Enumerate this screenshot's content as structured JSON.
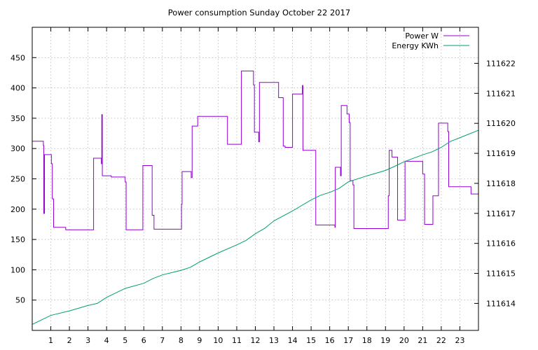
{
  "chart_data": {
    "type": "line",
    "title": "Power consumption Sunday October 22 2017",
    "xlabel": "",
    "ylabel": "",
    "y2label": "",
    "grid": true,
    "legend_position": "top-right",
    "xlim": [
      0,
      24
    ],
    "ylim": [
      0,
      500
    ],
    "y2lim": [
      111613.1,
      111623.2
    ],
    "x_ticks": [
      1,
      2,
      3,
      4,
      5,
      6,
      7,
      8,
      9,
      10,
      11,
      12,
      13,
      14,
      15,
      16,
      17,
      18,
      19,
      20,
      21,
      22,
      23
    ],
    "y_ticks": [
      50,
      100,
      150,
      200,
      250,
      300,
      350,
      400,
      450
    ],
    "y2_ticks": [
      111614,
      111615,
      111616,
      111617,
      111618,
      111619,
      111620,
      111621,
      111622
    ],
    "series": [
      {
        "name": "Power W",
        "axis": "left",
        "color": "#9400d3",
        "step": true,
        "points": [
          [
            0.0,
            312
          ],
          [
            0.55,
            312
          ],
          [
            0.6,
            305
          ],
          [
            0.62,
            193
          ],
          [
            0.66,
            290
          ],
          [
            1.0,
            290
          ],
          [
            1.03,
            275
          ],
          [
            1.08,
            217
          ],
          [
            1.15,
            170
          ],
          [
            1.75,
            170
          ],
          [
            1.8,
            166
          ],
          [
            3.25,
            166
          ],
          [
            3.3,
            284
          ],
          [
            3.7,
            284
          ],
          [
            3.72,
            275
          ],
          [
            3.74,
            356
          ],
          [
            3.77,
            255
          ],
          [
            4.2,
            255
          ],
          [
            4.25,
            253
          ],
          [
            4.95,
            253
          ],
          [
            5.0,
            245
          ],
          [
            5.05,
            166
          ],
          [
            5.9,
            166
          ],
          [
            5.95,
            272
          ],
          [
            6.4,
            272
          ],
          [
            6.45,
            190
          ],
          [
            6.55,
            167
          ],
          [
            8.0,
            167
          ],
          [
            8.03,
            208
          ],
          [
            8.06,
            262
          ],
          [
            8.5,
            262
          ],
          [
            8.55,
            252
          ],
          [
            8.6,
            337
          ],
          [
            8.85,
            337
          ],
          [
            8.9,
            353
          ],
          [
            10.45,
            353
          ],
          [
            10.5,
            307
          ],
          [
            11.2,
            307
          ],
          [
            11.25,
            428
          ],
          [
            11.85,
            428
          ],
          [
            11.9,
            405
          ],
          [
            11.95,
            327
          ],
          [
            12.15,
            327
          ],
          [
            12.18,
            311
          ],
          [
            12.22,
            409
          ],
          [
            13.2,
            409
          ],
          [
            13.25,
            384
          ],
          [
            13.45,
            384
          ],
          [
            13.5,
            304
          ],
          [
            13.6,
            302
          ],
          [
            13.95,
            302
          ],
          [
            14.0,
            390
          ],
          [
            14.5,
            390
          ],
          [
            14.53,
            404
          ],
          [
            14.56,
            297
          ],
          [
            15.2,
            297
          ],
          [
            15.25,
            174
          ],
          [
            16.25,
            174
          ],
          [
            16.28,
            170
          ],
          [
            16.3,
            269
          ],
          [
            16.55,
            269
          ],
          [
            16.58,
            255
          ],
          [
            16.62,
            371
          ],
          [
            16.9,
            371
          ],
          [
            16.93,
            357
          ],
          [
            17.05,
            343
          ],
          [
            17.1,
            247
          ],
          [
            17.25,
            240
          ],
          [
            17.3,
            168
          ],
          [
            19.1,
            168
          ],
          [
            19.15,
            222
          ],
          [
            19.2,
            297
          ],
          [
            19.35,
            286
          ],
          [
            19.6,
            286
          ],
          [
            19.65,
            182
          ],
          [
            20.0,
            182
          ],
          [
            20.05,
            279
          ],
          [
            20.95,
            279
          ],
          [
            21.0,
            258
          ],
          [
            21.1,
            175
          ],
          [
            21.5,
            175
          ],
          [
            21.55,
            222
          ],
          [
            21.8,
            222
          ],
          [
            21.85,
            342
          ],
          [
            22.3,
            342
          ],
          [
            22.35,
            328
          ],
          [
            22.4,
            237
          ],
          [
            23.55,
            237
          ],
          [
            23.6,
            225
          ],
          [
            23.95,
            225
          ],
          [
            24.0,
            330
          ]
        ]
      },
      {
        "name": "Energy KWh",
        "axis": "right",
        "color": "#009e73",
        "step": false,
        "points": [
          [
            0.0,
            111613.3
          ],
          [
            1.0,
            111613.6
          ],
          [
            2.0,
            111613.75
          ],
          [
            3.0,
            111613.93
          ],
          [
            3.5,
            111614.0
          ],
          [
            4.0,
            111614.2
          ],
          [
            5.0,
            111614.5
          ],
          [
            6.0,
            111614.67
          ],
          [
            6.5,
            111614.83
          ],
          [
            7.0,
            111614.95
          ],
          [
            8.0,
            111615.1
          ],
          [
            8.5,
            111615.2
          ],
          [
            9.0,
            111615.38
          ],
          [
            10.0,
            111615.68
          ],
          [
            11.0,
            111615.95
          ],
          [
            11.5,
            111616.1
          ],
          [
            12.0,
            111616.32
          ],
          [
            12.5,
            111616.5
          ],
          [
            13.0,
            111616.75
          ],
          [
            14.0,
            111617.08
          ],
          [
            15.0,
            111617.45
          ],
          [
            15.5,
            111617.6
          ],
          [
            16.0,
            111617.7
          ],
          [
            16.5,
            111617.83
          ],
          [
            17.0,
            111618.05
          ],
          [
            18.0,
            111618.25
          ],
          [
            19.0,
            111618.43
          ],
          [
            19.5,
            111618.57
          ],
          [
            20.0,
            111618.72
          ],
          [
            21.0,
            111618.95
          ],
          [
            21.5,
            111619.05
          ],
          [
            22.0,
            111619.2
          ],
          [
            22.5,
            111619.4
          ],
          [
            23.0,
            111619.52
          ],
          [
            24.0,
            111619.77
          ]
        ]
      }
    ]
  }
}
